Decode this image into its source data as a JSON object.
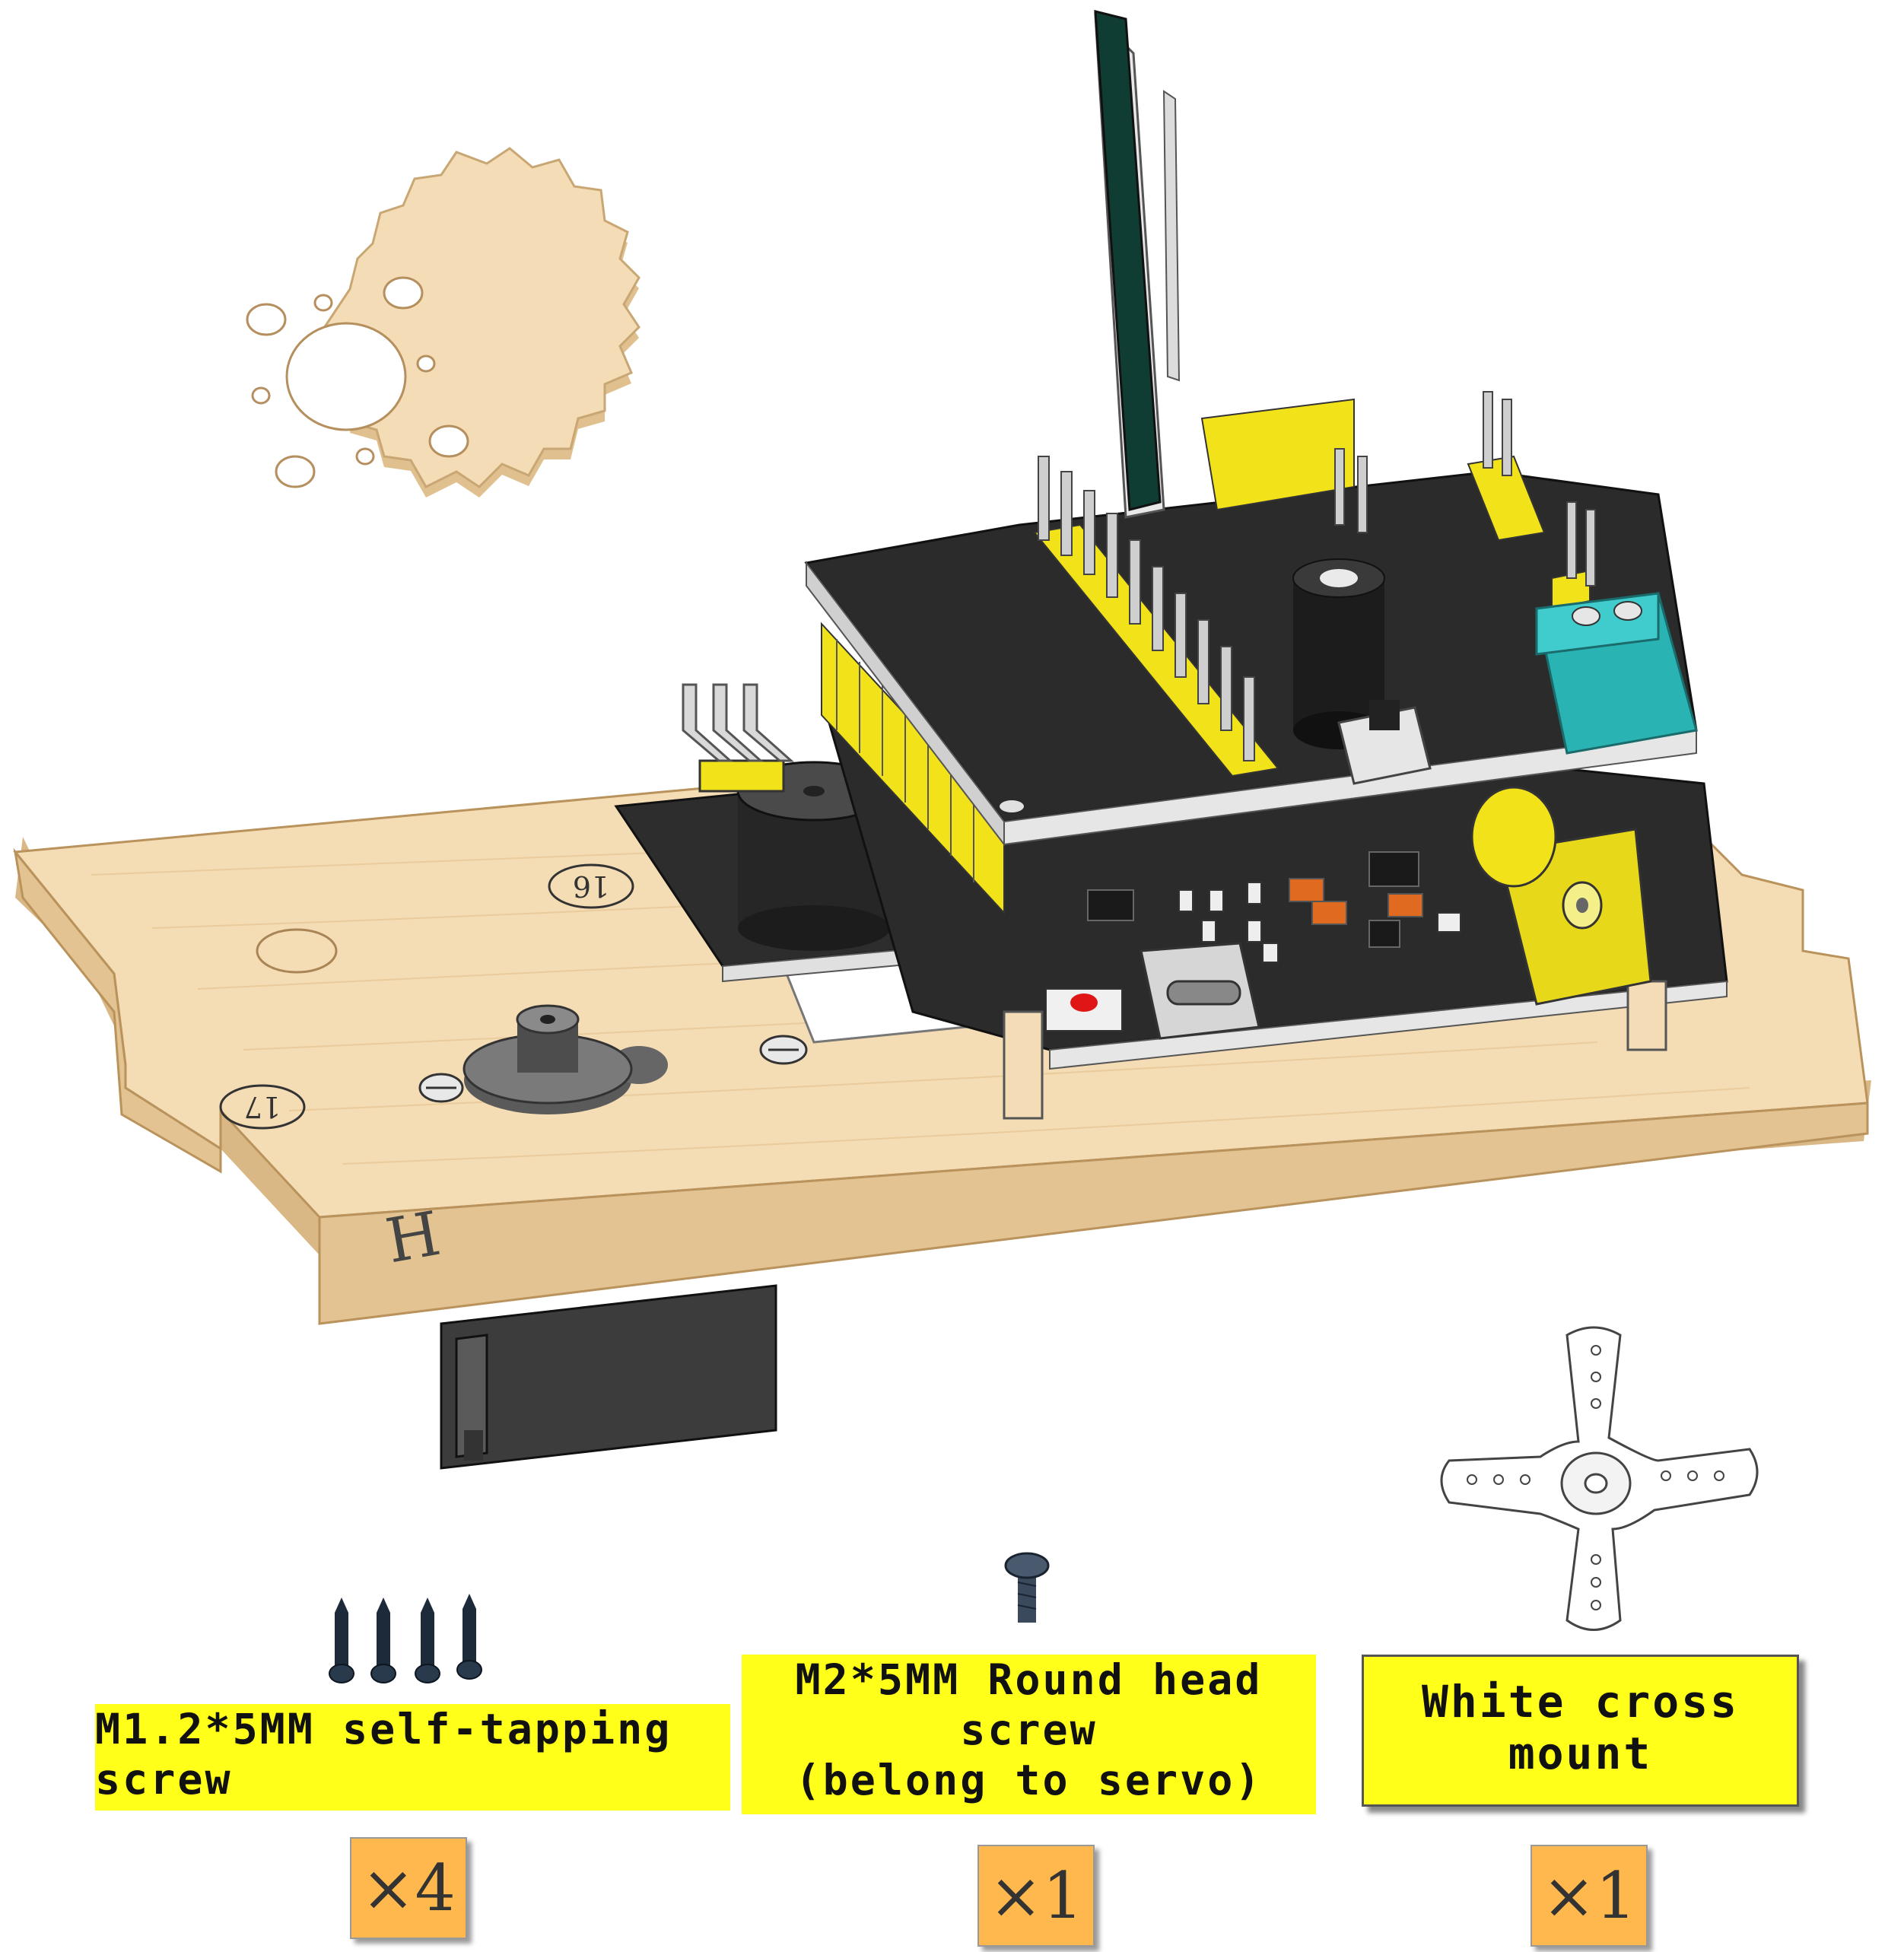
{
  "parts": [
    {
      "name": "M1.2*5MM self-tapping screw",
      "lines": [
        "M1.2*5MM self-tapping",
        "screw"
      ],
      "quantity": "×4"
    },
    {
      "name": "M2*5MM Round head screw (belong to servo)",
      "lines": [
        "M2*5MM Round head",
        "screw",
        "(belong to  servo)"
      ],
      "quantity": "×1"
    },
    {
      "name": "White cross mount",
      "lines": [
        "White cross",
        "mount"
      ],
      "quantity": "×1"
    }
  ],
  "board_markings": {
    "part_letter": "H",
    "circle_label_a": "16",
    "circle_label_b": "17"
  },
  "colors": {
    "wood": "#f2d9b0",
    "wood_edge": "#d9b886",
    "pcb": "#2b2b2b",
    "header_yellow": "#f2e21a",
    "label_yellow": "#ffff1a",
    "qty_orange": "#ffb84d",
    "terminal_teal": "#33c2c2",
    "antenna_green": "#0f3d33"
  }
}
